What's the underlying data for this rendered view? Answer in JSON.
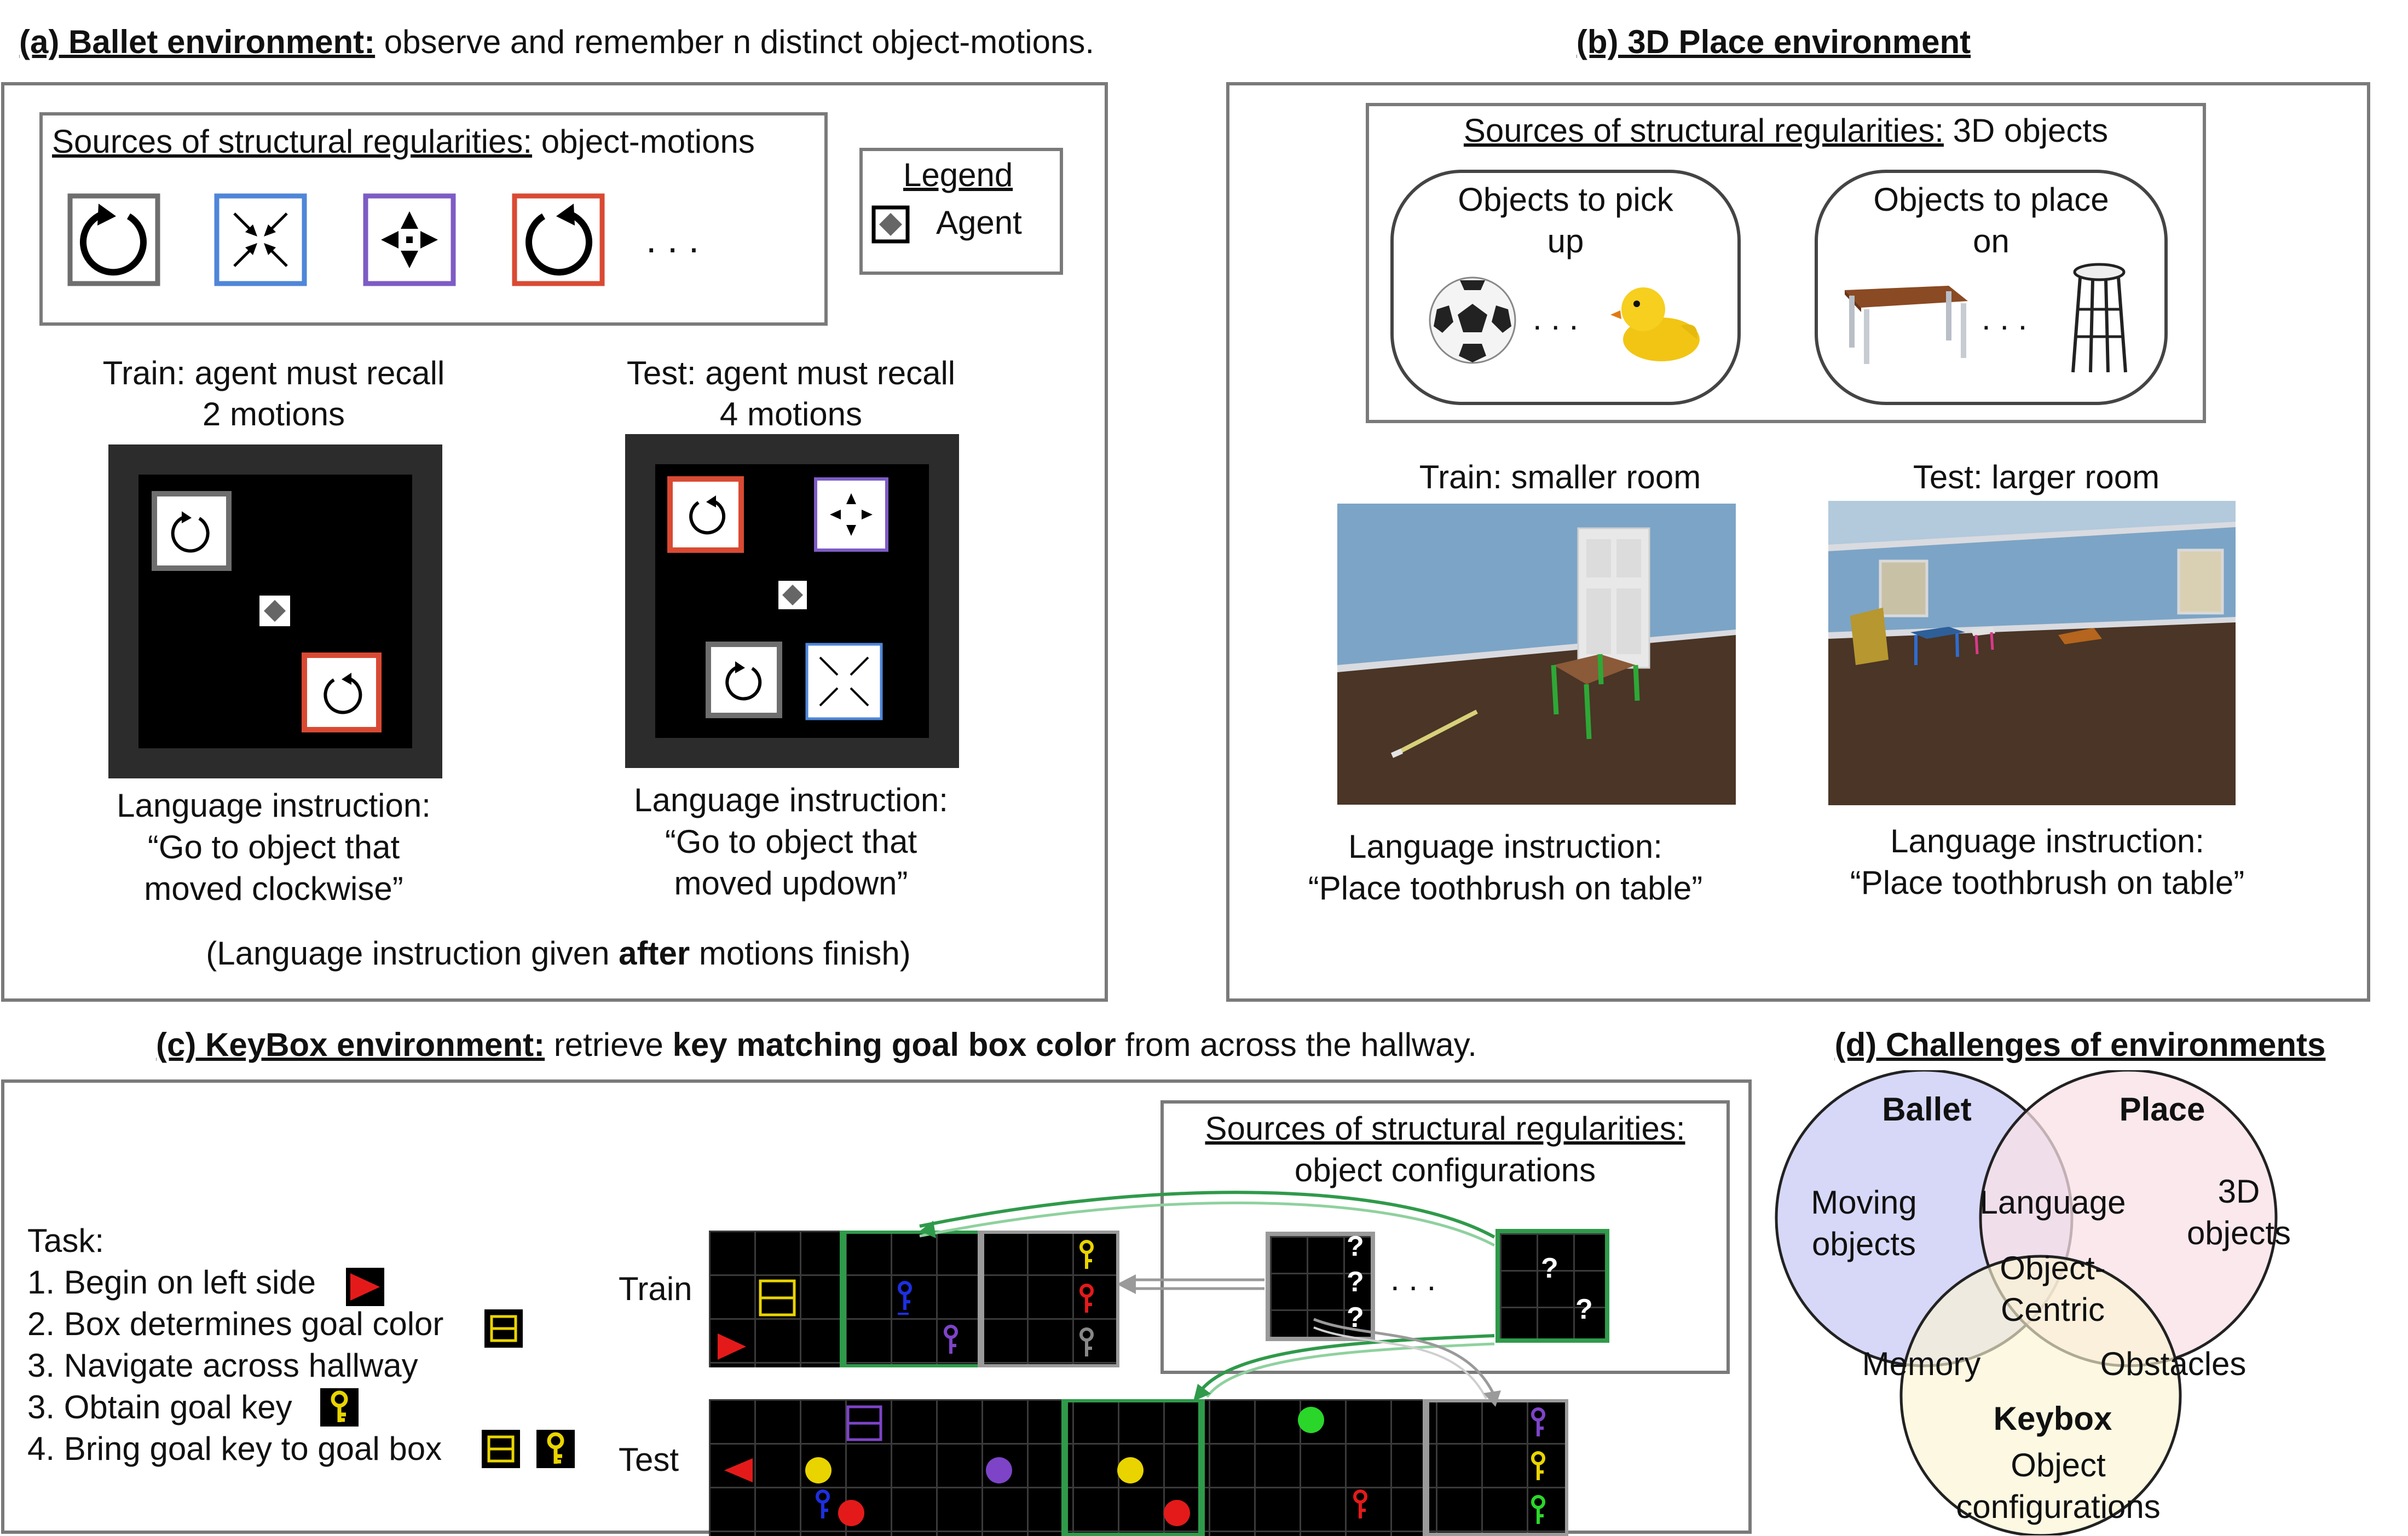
{
  "panel_a": {
    "heading_label": "(a) Ballet environment:",
    "heading_rest": " observe and remember n distinct object-motions.",
    "sources_label": "Sources of structural regularities:",
    "sources_rest": " object-motions",
    "ellipsis": ". . .",
    "legend_title": "Legend",
    "legend_agent": "Agent",
    "train_line1": "Train: agent must recall",
    "train_line2": "2 motions",
    "test_line1": "Test: agent must recall",
    "test_line2": "4 motions",
    "train_instr_line1": "Language instruction:",
    "train_instr_line2": "“Go to object that",
    "train_instr_line3": "moved clockwise”",
    "test_instr_line1": "Language instruction:",
    "test_instr_line2": "“Go to object that",
    "test_instr_line3": "moved updown”",
    "footer_pre": "(Language instruction given ",
    "footer_bold": "after",
    "footer_post": " motions finish)"
  },
  "panel_b": {
    "heading": "(b) 3D Place environment",
    "sources_label": "Sources of structural regularities:",
    "sources_rest": " 3D objects",
    "pick_line1": "Objects to pick",
    "pick_line2": "up",
    "place_line1": "Objects to place",
    "place_line2": "on",
    "ellipsis": ". . .",
    "train_caption": "Train: smaller room",
    "test_caption": "Test: larger room",
    "train_instr_line1": "Language instruction:",
    "train_instr_line2": "“Place toothbrush on table”",
    "test_instr_line1": "Language instruction:",
    "test_instr_line2": "“Place toothbrush on table”"
  },
  "panel_c": {
    "heading_label": "(c) KeyBox environment:",
    "heading_mid": " retrieve ",
    "heading_bold": "key matching goal box color",
    "heading_post": " from across the hallway.",
    "task_title": "Task:",
    "steps": [
      "1. Begin on left side",
      "2. Box determines goal color",
      "3. Navigate across hallway",
      "3. Obtain goal key",
      "4. Bring goal key to goal box"
    ],
    "train_label": "Train",
    "test_label": "Test",
    "sources_label": "Sources of structural regularities:",
    "sources_line2": "object configurations",
    "ellipsis": ". . .",
    "q": "?"
  },
  "panel_d": {
    "heading": "(d) Challenges of environments",
    "ballet": "Ballet",
    "place": "Place",
    "keybox": "Keybox",
    "moving_line1": "Moving",
    "moving_line2": "objects",
    "objects3d_line1": "3D",
    "objects3d_line2": "objects",
    "language": "Language",
    "oc_line1": "Object-",
    "oc_line2": "Centric",
    "memory": "Memory",
    "obstacles": "Obstacles",
    "config_line1": "Object",
    "config_line2": "configurations",
    "colors": {
      "ballet": "#c9c9f5",
      "place": "#f8e0e6",
      "keybox": "#fbf5d2"
    }
  },
  "colors": {
    "gray": "#6e6e6e",
    "blue": "#4f86d8",
    "purple": "#7d5cc4",
    "red": "#d94a33",
    "green": "#2f9a4a",
    "yellow": "#e9d400"
  }
}
